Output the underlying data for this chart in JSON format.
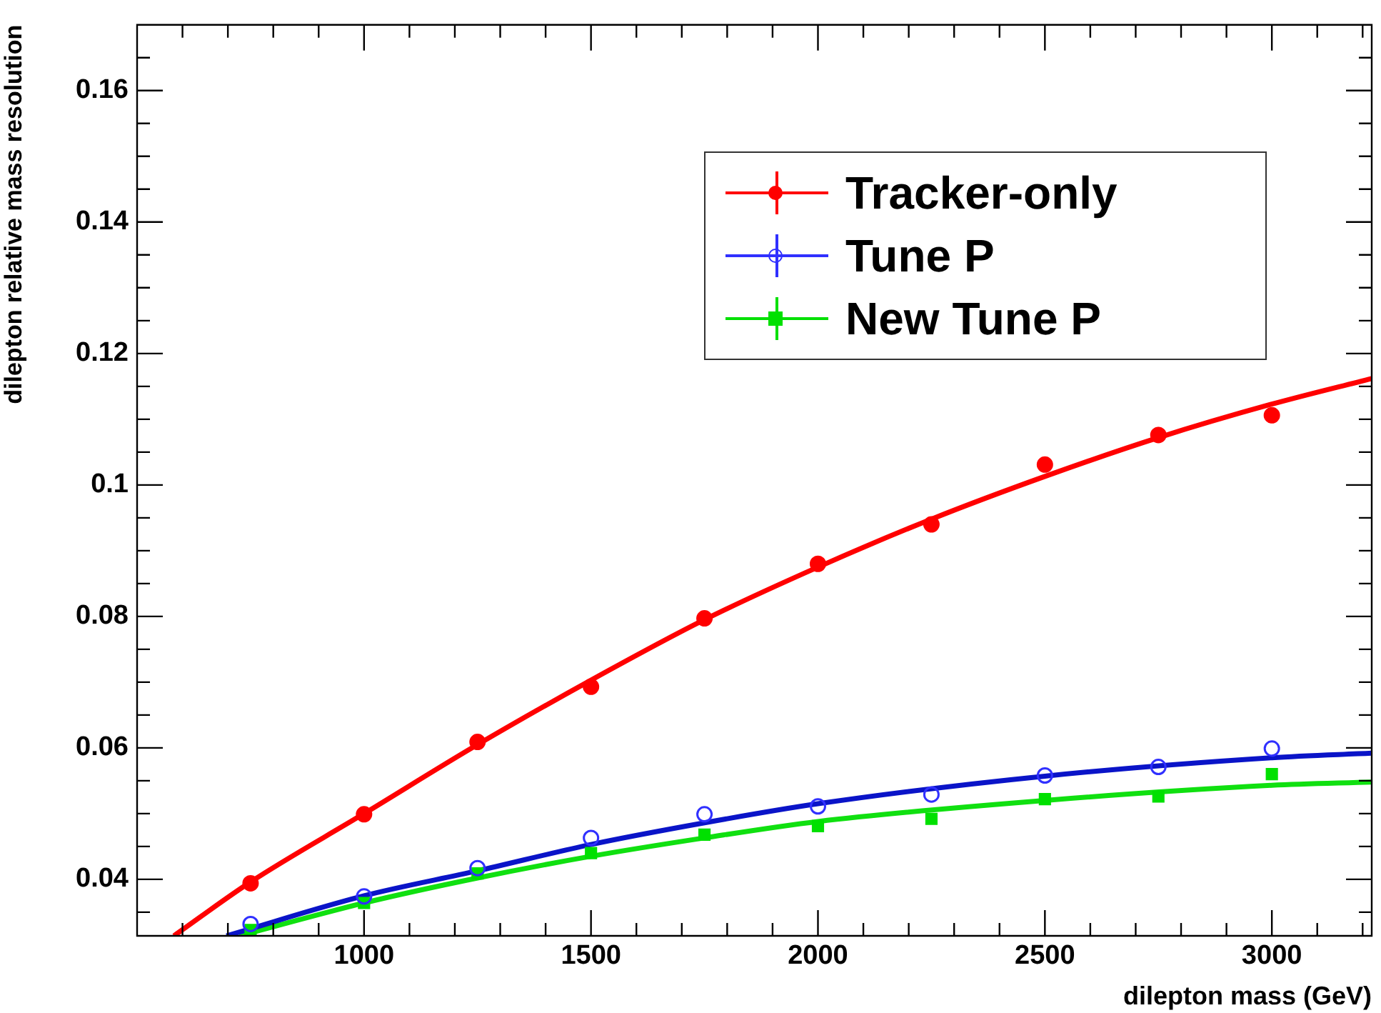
{
  "chart_data": {
    "type": "scatter",
    "xlabel": "dilepton mass (GeV)",
    "ylabel": "dilepton relative mass resolution",
    "xlim": [
      500,
      3220
    ],
    "ylim": [
      0.0314,
      0.17
    ],
    "xticks": [
      {
        "value": 600,
        "label": null
      },
      {
        "value": 700,
        "label": null
      },
      {
        "value": 800,
        "label": null
      },
      {
        "value": 900,
        "label": null
      },
      1000,
      {
        "value": 1100,
        "label": null
      },
      {
        "value": 1200,
        "label": null
      },
      {
        "value": 1300,
        "label": null
      },
      {
        "value": 1400,
        "label": null
      },
      1500,
      {
        "value": 1600,
        "label": null
      },
      {
        "value": 1700,
        "label": null
      },
      {
        "value": 1800,
        "label": null
      },
      {
        "value": 1900,
        "label": null
      },
      2000,
      {
        "value": 2100,
        "label": null
      },
      {
        "value": 2200,
        "label": null
      },
      {
        "value": 2300,
        "label": null
      },
      {
        "value": 2400,
        "label": null
      },
      2500,
      {
        "value": 2600,
        "label": null
      },
      {
        "value": 2700,
        "label": null
      },
      {
        "value": 2800,
        "label": null
      },
      {
        "value": 2900,
        "label": null
      },
      3000,
      {
        "value": 3100,
        "label": null
      },
      {
        "value": 3200,
        "label": null
      }
    ],
    "yticks": [
      {
        "value": 0.035,
        "label": null
      },
      0.04,
      {
        "value": 0.045,
        "label": null
      },
      {
        "value": 0.05,
        "label": null
      },
      {
        "value": 0.055,
        "label": null
      },
      0.06,
      {
        "value": 0.065,
        "label": null
      },
      {
        "value": 0.07,
        "label": null
      },
      {
        "value": 0.075,
        "label": null
      },
      0.08,
      {
        "value": 0.085,
        "label": null
      },
      {
        "value": 0.09,
        "label": null
      },
      {
        "value": 0.095,
        "label": null
      },
      0.1,
      {
        "value": 0.105,
        "label": null
      },
      {
        "value": 0.11,
        "label": null
      },
      {
        "value": 0.115,
        "label": null
      },
      0.12,
      {
        "value": 0.125,
        "label": null
      },
      {
        "value": 0.13,
        "label": null
      },
      {
        "value": 0.135,
        "label": null
      },
      0.14,
      {
        "value": 0.145,
        "label": null
      },
      {
        "value": 0.15,
        "label": null
      },
      {
        "value": 0.155,
        "label": null
      },
      0.16,
      {
        "value": 0.165,
        "label": null
      }
    ],
    "grid": false,
    "legend": "top right",
    "series": [
      {
        "name": "Tracker-only",
        "type": "scatter",
        "marker": "circle",
        "color": "#ff0000",
        "x": [
          750,
          1000,
          1250,
          1500,
          1750,
          2000,
          2250,
          2500,
          2750,
          3000
        ],
        "values": [
          0.0394,
          0.0499,
          0.0609,
          0.0693,
          0.0797,
          0.088,
          0.094,
          0.1031,
          0.1076,
          0.1106
        ],
        "errors": [
          null,
          null,
          null,
          null,
          null,
          null,
          null,
          0.001,
          0.0012,
          0.001
        ]
      },
      {
        "name": "Tune P",
        "type": "scatter",
        "marker": "circle_open",
        "color": "#3030ff",
        "x": [
          750,
          1000,
          1250,
          1500,
          1750,
          2000,
          2250,
          2500,
          2750,
          3000
        ],
        "values": [
          0.0332,
          0.0374,
          0.0417,
          0.0463,
          0.0499,
          0.0511,
          0.0529,
          0.0558,
          0.0571,
          0.0599
        ]
      },
      {
        "name": "New Tune P",
        "type": "scatter",
        "marker": "square",
        "color": "#00e000",
        "x": [
          750,
          1000,
          1250,
          1500,
          1750,
          2000,
          2250,
          2500,
          2750,
          3000
        ],
        "values": [
          0.0323,
          0.0364,
          0.0409,
          0.044,
          0.0468,
          0.0481,
          0.0492,
          0.0522,
          0.0526,
          0.056
        ]
      },
      {
        "type": "line",
        "color": "#ff0000",
        "x": [
          581,
          750,
          1000,
          1250,
          1500,
          1750,
          2000,
          2250,
          2500,
          2750,
          3000,
          3220
        ],
        "values": [
          0.0314,
          0.0396,
          0.05,
          0.0605,
          0.0703,
          0.0795,
          0.0875,
          0.0948,
          0.1013,
          0.1072,
          0.1123,
          0.1162
        ]
      },
      {
        "type": "line",
        "color": "#0a14c8",
        "x": [
          697,
          1000,
          1250,
          1500,
          1750,
          2000,
          2500,
          3000,
          3220
        ],
        "values": [
          0.0314,
          0.0375,
          0.0413,
          0.0453,
          0.0486,
          0.0515,
          0.0557,
          0.0585,
          0.0592
        ]
      },
      {
        "type": "line",
        "color": "#10e010",
        "x": [
          725,
          1000,
          1250,
          1500,
          1750,
          2000,
          2500,
          3000,
          3220
        ],
        "values": [
          0.0314,
          0.0364,
          0.0402,
          0.0435,
          0.0463,
          0.0488,
          0.052,
          0.0543,
          0.0548
        ]
      }
    ]
  }
}
